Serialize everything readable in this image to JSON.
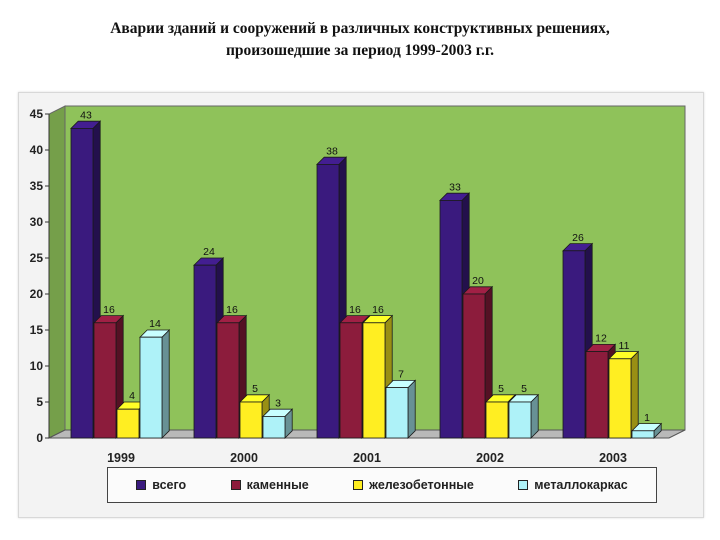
{
  "title": {
    "line1": "Аварии зданий и сооружений в различных конструктивных решениях,",
    "line2": "произошедшие за период 1999-2003 г.г."
  },
  "chart_data": {
    "type": "bar",
    "categories": [
      "1999",
      "2000",
      "2001",
      "2002",
      "2003"
    ],
    "series": [
      {
        "name": "всего",
        "values": [
          43,
          24,
          38,
          33,
          26
        ],
        "color": "#3a1a7e"
      },
      {
        "name": "каменные",
        "values": [
          16,
          16,
          16,
          20,
          12
        ],
        "color": "#8c1c3c"
      },
      {
        "name": "железобетонные",
        "values": [
          4,
          5,
          16,
          5,
          11
        ],
        "color": "#ffee22"
      },
      {
        "name": "металлокаркас",
        "values": [
          14,
          3,
          7,
          5,
          1
        ],
        "color": "#aef2f8"
      }
    ],
    "ylim": [
      0,
      45
    ],
    "yticks": [
      "0",
      "5",
      "10",
      "15",
      "20",
      "25",
      "30",
      "35",
      "40",
      "45"
    ],
    "legend_position": "bottom",
    "plot_background": "#8fc25a"
  }
}
